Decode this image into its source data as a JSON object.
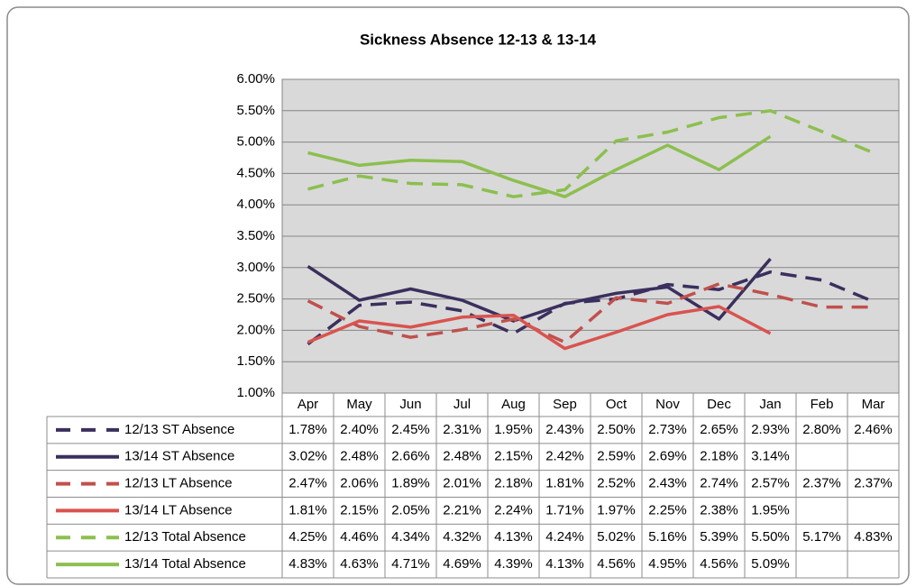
{
  "chart_data": {
    "type": "line",
    "title": "Sickness Absence 12-13 & 13-14",
    "categories": [
      "Apr",
      "May",
      "Jun",
      "Jul",
      "Aug",
      "Sep",
      "Oct",
      "Nov",
      "Dec",
      "Jan",
      "Feb",
      "Mar"
    ],
    "ylim": [
      1,
      6
    ],
    "yticks": [
      {
        "value": 1,
        "label": "1.00%"
      },
      {
        "value": 1.5,
        "label": "1.50%"
      },
      {
        "value": 2,
        "label": "2.00%"
      },
      {
        "value": 2.5,
        "label": "2.50%"
      },
      {
        "value": 3,
        "label": "3.00%"
      },
      {
        "value": 3.5,
        "label": "3.50%"
      },
      {
        "value": 4,
        "label": "4.00%"
      },
      {
        "value": 4.5,
        "label": "4.50%"
      },
      {
        "value": 5,
        "label": "5.00%"
      },
      {
        "value": 5.5,
        "label": "5.50%"
      },
      {
        "value": 6,
        "label": "6.00%"
      }
    ],
    "grid": true,
    "data_table": true,
    "series": [
      {
        "name": "12/13 ST Absence",
        "color": "#3b2f5e",
        "dashed": true,
        "values": [
          1.78,
          2.4,
          2.45,
          2.31,
          1.95,
          2.43,
          2.5,
          2.73,
          2.65,
          2.93,
          2.8,
          2.46
        ],
        "value_labels": [
          "1.78%",
          "2.40%",
          "2.45%",
          "2.31%",
          "1.95%",
          "2.43%",
          "2.50%",
          "2.73%",
          "2.65%",
          "2.93%",
          "2.80%",
          "2.46%"
        ]
      },
      {
        "name": "13/14 ST Absence",
        "color": "#3b2f5e",
        "dashed": false,
        "values": [
          3.02,
          2.48,
          2.66,
          2.48,
          2.15,
          2.42,
          2.59,
          2.69,
          2.18,
          3.14,
          null,
          null
        ],
        "value_labels": [
          "3.02%",
          "2.48%",
          "2.66%",
          "2.48%",
          "2.15%",
          "2.42%",
          "2.59%",
          "2.69%",
          "2.18%",
          "3.14%",
          null,
          null
        ]
      },
      {
        "name": "12/13 LT Absence",
        "color": "#c0504d",
        "dashed": true,
        "values": [
          2.47,
          2.06,
          1.89,
          2.01,
          2.18,
          1.81,
          2.52,
          2.43,
          2.74,
          2.57,
          2.37,
          2.37
        ],
        "value_labels": [
          "2.47%",
          "2.06%",
          "1.89%",
          "2.01%",
          "2.18%",
          "1.81%",
          "2.52%",
          "2.43%",
          "2.74%",
          "2.57%",
          "2.37%",
          "2.37%"
        ]
      },
      {
        "name": "13/14 LT Absence",
        "color": "#d9534f",
        "dashed": false,
        "values": [
          1.81,
          2.15,
          2.05,
          2.21,
          2.24,
          1.71,
          1.97,
          2.25,
          2.38,
          1.95,
          null,
          null
        ],
        "value_labels": [
          "1.81%",
          "2.15%",
          "2.05%",
          "2.21%",
          "2.24%",
          "1.71%",
          "1.97%",
          "2.25%",
          "2.38%",
          "1.95%",
          null,
          null
        ]
      },
      {
        "name": "12/13 Total Absence",
        "color": "#8cbf4f",
        "dashed": true,
        "values": [
          4.25,
          4.46,
          4.34,
          4.32,
          4.13,
          4.24,
          5.02,
          5.16,
          5.39,
          5.5,
          5.17,
          4.83
        ],
        "value_labels": [
          "4.25%",
          "4.46%",
          "4.34%",
          "4.32%",
          "4.13%",
          "4.24%",
          "5.02%",
          "5.16%",
          "5.39%",
          "5.50%",
          "5.17%",
          "4.83%"
        ]
      },
      {
        "name": "13/14 Total Absence",
        "color": "#8cbf4f",
        "dashed": false,
        "values": [
          4.83,
          4.63,
          4.71,
          4.69,
          4.39,
          4.13,
          4.56,
          4.95,
          4.56,
          5.09,
          null,
          null
        ],
        "value_labels": [
          "4.83%",
          "4.63%",
          "4.71%",
          "4.69%",
          "4.39%",
          "4.13%",
          "4.56%",
          "4.95%",
          "4.56%",
          "5.09%",
          null,
          null
        ]
      }
    ]
  }
}
